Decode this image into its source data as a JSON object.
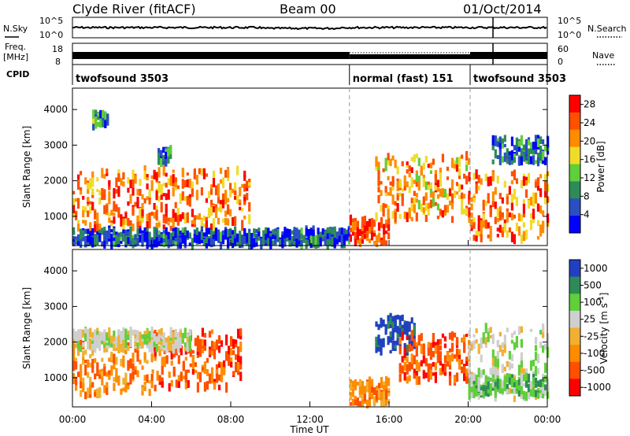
{
  "header": {
    "title": "Clyde River (fitACF)",
    "beam": "Beam 00",
    "date": "01/Oct/2014"
  },
  "top_panels": {
    "nsky_label": "N.Sky",
    "nsky_ticks": [
      "10^5",
      "10^0"
    ],
    "nsearch_label": "N.Search",
    "nsearch_ticks": [
      "10^5",
      "10^0"
    ],
    "freq_label": "Freq.",
    "freq_unit": "[MHz]",
    "freq_ticks": [
      "18",
      "8"
    ],
    "nave_label": "Nave",
    "nave_ticks": [
      "60",
      "0"
    ],
    "cpid_label": "CPID",
    "cpid_segments": [
      {
        "name": "twofsound 3503",
        "start_hour": 0,
        "end_hour": 14
      },
      {
        "name": "normal (fast) 151",
        "start_hour": 14,
        "end_hour": 20.1
      },
      {
        "name": "twofsound 3503",
        "start_hour": 20.1,
        "end_hour": 24
      }
    ]
  },
  "chart_data": [
    {
      "type": "heatmap",
      "panel": "power",
      "ylabel": "Slant Range [km]",
      "xlabel": "",
      "ylim": [
        180,
        4600
      ],
      "xlim_hours": [
        0,
        24
      ],
      "y_ticks": [
        1000,
        2000,
        3000,
        4000
      ],
      "colorbar": {
        "label": "Power [dB]",
        "ticks": [
          4,
          8,
          12,
          16,
          20,
          24,
          28
        ],
        "range": [
          0,
          30
        ],
        "colors": [
          "#0000ff",
          "#2a4fc0",
          "#2e8b57",
          "#5fcf3a",
          "#f0dc28",
          "#ff8c00",
          "#ff5000",
          "#ff0000"
        ]
      },
      "echo_regions": [
        {
          "t0": 0.0,
          "t1": 9.0,
          "r0": 650,
          "r1": 2300,
          "level": 24
        },
        {
          "t0": 4.3,
          "t1": 5.0,
          "r0": 2500,
          "r1": 2900,
          "level": 8
        },
        {
          "t0": 1.0,
          "t1": 1.8,
          "r0": 3500,
          "r1": 3900,
          "level": 10
        },
        {
          "t0": 0.0,
          "t1": 14.0,
          "r0": 200,
          "r1": 600,
          "level": 6
        },
        {
          "t0": 14.0,
          "t1": 16.0,
          "r0": 250,
          "r1": 900,
          "level": 28
        },
        {
          "t0": 15.3,
          "t1": 20.0,
          "r0": 900,
          "r1": 2700,
          "level": 22
        },
        {
          "t0": 20.0,
          "t1": 24.0,
          "r0": 350,
          "r1": 2200,
          "level": 24
        },
        {
          "t0": 21.2,
          "t1": 24.0,
          "r0": 2500,
          "r1": 3200,
          "level": 8
        }
      ]
    },
    {
      "type": "heatmap",
      "panel": "velocity",
      "ylabel": "Slant Range [km]",
      "xlabel": "Time UT",
      "ylim": [
        180,
        4600
      ],
      "xlim_hours": [
        0,
        24
      ],
      "y_ticks": [
        1000,
        2000,
        3000,
        4000
      ],
      "x_ticks": [
        "00:00",
        "04:00",
        "08:00",
        "12:00",
        "16:00",
        "20:00",
        "00:00"
      ],
      "x_tick_hours": [
        0,
        4,
        8,
        12,
        16,
        20,
        24
      ],
      "colorbar": {
        "label": "Velocity [m s^-1]",
        "ticks": [
          "1000",
          "500",
          "100",
          "25",
          "-25",
          "-100",
          "-500",
          "-1000"
        ],
        "colors": [
          "#2040c0",
          "#2e8b57",
          "#5fcf3a",
          "#cfcfcf",
          "#f0b030",
          "#ff8c00",
          "#ff5000",
          "#ff0000"
        ]
      },
      "echo_regions": [
        {
          "t0": 0.0,
          "t1": 4.0,
          "r0": 500,
          "r1": 2200,
          "level": "-100"
        },
        {
          "t0": 4.0,
          "t1": 8.5,
          "r0": 700,
          "r1": 2300,
          "level": "-500"
        },
        {
          "t0": 0.0,
          "t1": 6.0,
          "r0": 1800,
          "r1": 2300,
          "level": "25"
        },
        {
          "t0": 14.0,
          "t1": 16.0,
          "r0": 250,
          "r1": 900,
          "level": "-100"
        },
        {
          "t0": 15.3,
          "t1": 17.3,
          "r0": 1700,
          "r1": 2700,
          "level": "1000"
        },
        {
          "t0": 16.5,
          "t1": 20.0,
          "r0": 900,
          "r1": 2200,
          "level": "-500"
        },
        {
          "t0": 20.0,
          "t1": 24.0,
          "r0": 400,
          "r1": 2400,
          "level": "25"
        },
        {
          "t0": 20.0,
          "t1": 24.0,
          "r0": 500,
          "r1": 1000,
          "level": "100"
        }
      ]
    }
  ],
  "xaxis_title": "Time UT"
}
